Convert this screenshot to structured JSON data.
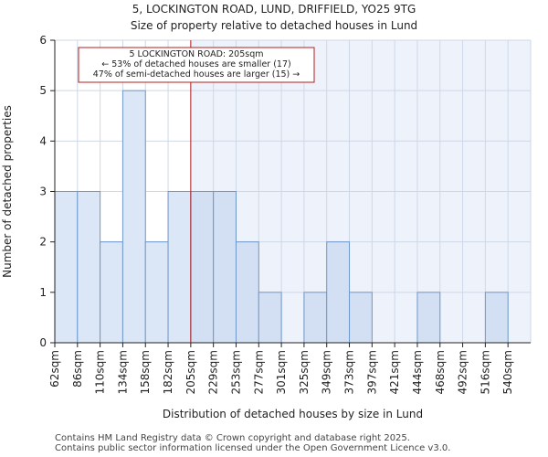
{
  "chart_data": {
    "type": "bar",
    "title": "5, LOCKINGTON ROAD, LUND, DRIFFIELD, YO25 9TG",
    "subtitle": "Size of property relative to detached houses in Lund",
    "xlabel": "Distribution of detached houses by size in Lund",
    "ylabel": "Number of detached properties",
    "categories": [
      "62sqm",
      "86sqm",
      "110sqm",
      "134sqm",
      "158sqm",
      "182sqm",
      "205sqm",
      "229sqm",
      "253sqm",
      "277sqm",
      "301sqm",
      "325sqm",
      "349sqm",
      "373sqm",
      "397sqm",
      "421sqm",
      "444sqm",
      "468sqm",
      "492sqm",
      "516sqm",
      "540sqm"
    ],
    "values": [
      3,
      3,
      2,
      5,
      2,
      3,
      3,
      3,
      2,
      1,
      0,
      1,
      2,
      1,
      0,
      0,
      1,
      0,
      0,
      1,
      0
    ],
    "ylim": [
      0,
      6
    ],
    "yticks": [
      0,
      1,
      2,
      3,
      4,
      5,
      6
    ],
    "grid": true,
    "marker": {
      "category_index": 6,
      "lines": [
        "5 LOCKINGTON ROAD: 205sqm",
        "← 53% of detached houses are smaller (17)",
        "47% of semi-detached houses are larger (15) →"
      ]
    },
    "colors": {
      "bar_before": "#dbe6f6",
      "bar_after": "#d3dff2",
      "bar_edge": "#6f98cc",
      "highlight_region": "#eef2fb",
      "marker_line": "#b71c1c",
      "grid": "#cfd8e6"
    }
  },
  "footer": {
    "line1": "Contains HM Land Registry data © Crown copyright and database right 2025.",
    "line2": "Contains public sector information licensed under the Open Government Licence v3.0."
  }
}
